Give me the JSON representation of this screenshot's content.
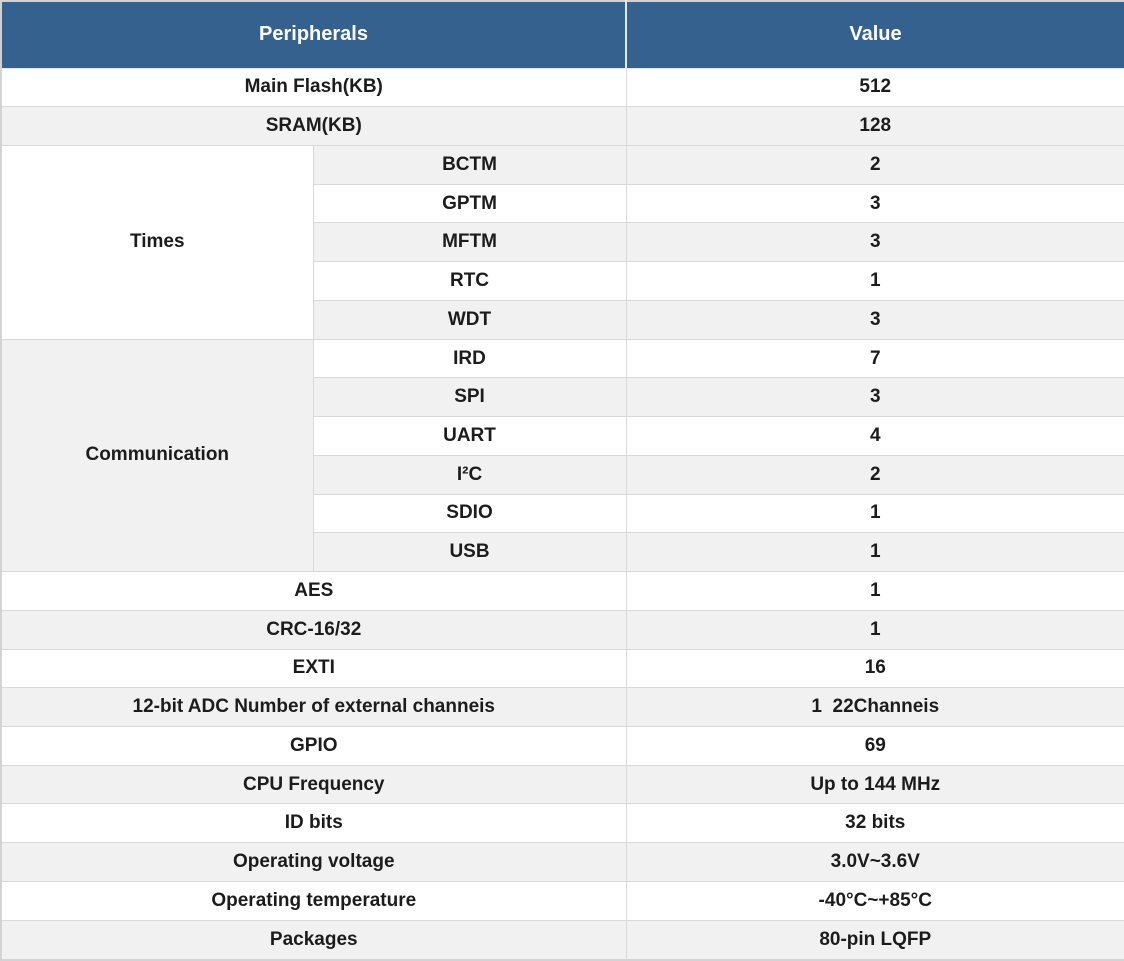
{
  "colors": {
    "header_bg": "#35618f",
    "stripe_bg": "#f1f1f1",
    "border_color": "#d9d9d9"
  },
  "header": {
    "peripherals": "Peripherals",
    "value": "Value"
  },
  "body": {
    "rows": [
      {
        "label": "Main Flash(KB)",
        "value": "512"
      },
      {
        "label": "SRAM(KB)",
        "value": "128"
      },
      {
        "group": "Times",
        "label": "BCTM",
        "value": "2"
      },
      {
        "label": "GPTM",
        "value": "3"
      },
      {
        "label": "MFTM",
        "value": "3"
      },
      {
        "label": "RTC",
        "value": "1"
      },
      {
        "label": "WDT",
        "value": "3"
      },
      {
        "group": "Communication",
        "label": "IRD",
        "value": "7"
      },
      {
        "label": "SPI",
        "value": "3"
      },
      {
        "label": "UART",
        "value": "4"
      },
      {
        "label": "I²C",
        "value": "2"
      },
      {
        "label": "SDIO",
        "value": "1"
      },
      {
        "label": "USB",
        "value": "1"
      },
      {
        "label": "AES",
        "value": "1"
      },
      {
        "label": "CRC-16/32",
        "value": "1"
      },
      {
        "label": "EXTI",
        "value": "16"
      },
      {
        "label": "12-bit ADC Number of external channeis",
        "value": "1  22Channeis"
      },
      {
        "label": "GPIO",
        "value": "69"
      },
      {
        "label": "CPU Frequency",
        "value": "Up to 144 MHz"
      },
      {
        "label": "ID bits",
        "value": "32 bits"
      },
      {
        "label": "Operating voltage",
        "value": "3.0V~3.6V"
      },
      {
        "label": "Operating temperature",
        "value": "-40°C~+85°C"
      },
      {
        "label": "Packages",
        "value": "80-pin LQFP"
      }
    ]
  }
}
